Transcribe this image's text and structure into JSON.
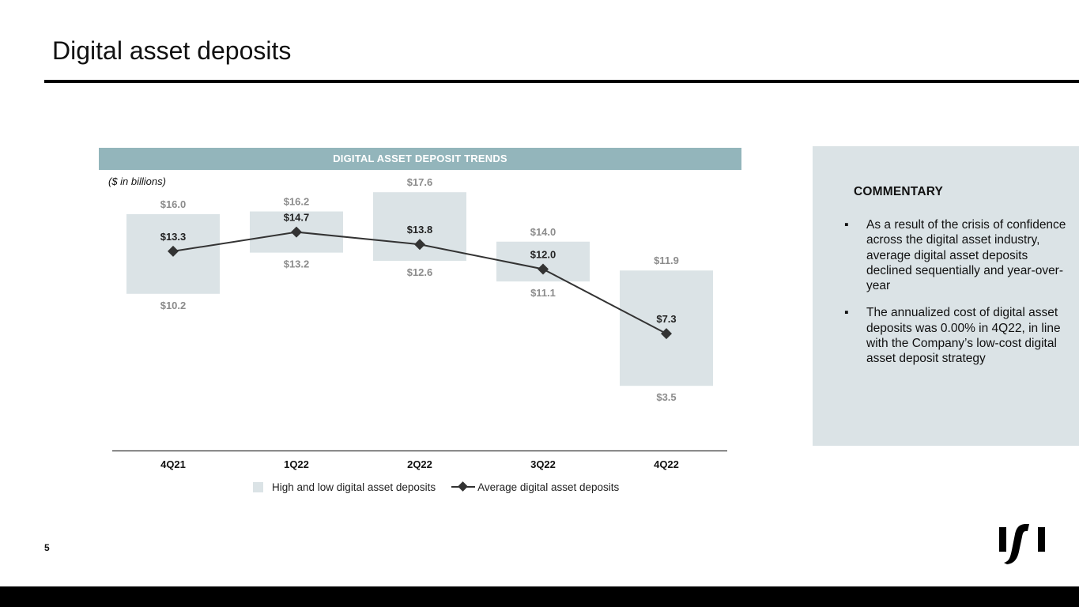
{
  "page": {
    "title": "Digital asset deposits",
    "page_number": "5"
  },
  "chart_data": {
    "type": "bar",
    "title": "DIGITAL ASSET DEPOSIT TRENDS",
    "subtitle": "($ in billions)",
    "categories": [
      "4Q21",
      "1Q22",
      "2Q22",
      "3Q22",
      "4Q22"
    ],
    "ylim": [
      0,
      20
    ],
    "grid": false,
    "legend_position": "bottom",
    "series": [
      {
        "name": "High and low digital asset deposits",
        "type": "floating-bar",
        "color": "#dbe3e6",
        "high": [
          16.0,
          16.2,
          17.6,
          14.0,
          11.9
        ],
        "low": [
          10.2,
          13.2,
          12.6,
          11.1,
          3.5
        ],
        "high_labels": [
          "$16.0",
          "$16.2",
          "$17.6",
          "$14.0",
          "$11.9"
        ],
        "low_labels": [
          "$10.2",
          "$13.2",
          "$12.6",
          "$11.1",
          "$3.5"
        ]
      },
      {
        "name": "Average digital asset deposits",
        "type": "line",
        "marker": "diamond",
        "color": "#333333",
        "values": [
          13.3,
          14.7,
          13.8,
          12.0,
          7.3
        ],
        "labels": [
          "$13.3",
          "$14.7",
          "$13.8",
          "$12.0",
          "$7.3"
        ]
      }
    ]
  },
  "commentary": {
    "title": "COMMENTARY",
    "bullet_glyph": "▪",
    "items": [
      "As a result of the crisis of confidence across the digital asset industry, average digital asset deposits declined sequentially and year-over-year",
      "The annualized cost of digital asset deposits was 0.00% in 4Q22, in line with the Company’s low-cost digital asset deposit strategy"
    ]
  },
  "colors": {
    "header_bar": "#93b5bb",
    "range_bar": "#dbe3e6",
    "range_label": "#8c8c8c",
    "line": "#333333",
    "footer_bar": "#000000"
  },
  "icons": {
    "logo": "company-logo-icon"
  }
}
